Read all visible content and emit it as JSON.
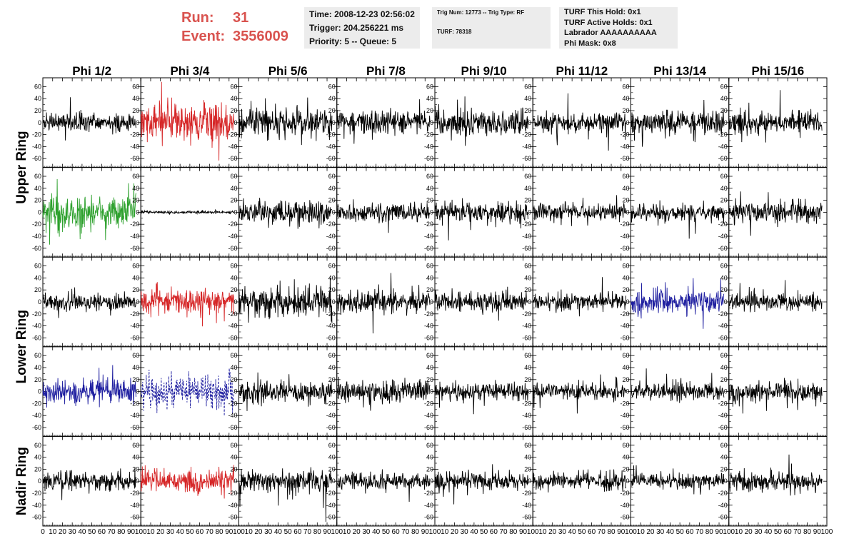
{
  "header": {
    "run_label": "Run:",
    "run_value": "31",
    "event_label": "Event:",
    "event_value": "3556009"
  },
  "info_time": {
    "time": "Time: 2008-12-23 02:56:02",
    "trigger": "Trigger: 204.256221 ms",
    "priority": "Priority: 5 -- Queue: 5"
  },
  "info_trig": {
    "trig_line": "Trig Num: 12773 -- Trig Type: RF",
    "turf_line": "TURF: 78318"
  },
  "info_turf": {
    "this_hold": "TURF This Hold: 0x1",
    "active_holds": "TURF Active Holds: 0x1",
    "labrador": "Labrador AAAAAAAAAA",
    "phi_mask": "Phi Mask: 0x8"
  },
  "colors": {
    "header_accent": "#d9534f",
    "trace_default": "#000000",
    "trace_red": "#d62728",
    "trace_green": "#2ca02c",
    "trace_blue": "#1f1fa0",
    "dashed_blue": "#1f1fa0",
    "info_box_bg": "#ececec"
  },
  "chart_data": {
    "type": "line",
    "columns": [
      "Phi 1/2",
      "Phi 3/4",
      "Phi 5/6",
      "Phi 7/8",
      "Phi 9/10",
      "Phi 11/12",
      "Phi 13/14",
      "Phi 15/16"
    ],
    "ring_labels": [
      {
        "label": "Upper Ring",
        "rows": [
          0,
          1
        ]
      },
      {
        "label": "Lower Ring",
        "rows": [
          2,
          3
        ]
      },
      {
        "label": "Nadir Ring",
        "rows": [
          4,
          4
        ]
      }
    ],
    "ylim": [
      -70,
      70
    ],
    "y_ticks": [
      -60,
      -40,
      -20,
      0,
      20,
      40,
      60
    ],
    "xlim": [
      0,
      100
    ],
    "x_ticks": [
      0,
      10,
      20,
      30,
      40,
      50,
      60,
      70,
      80,
      90,
      100
    ],
    "x_tick_labels": [
      "0",
      "10",
      "20",
      "30",
      "40",
      "50",
      "60",
      "70",
      "80",
      "90",
      "100"
    ],
    "x_data_range": [
      0,
      95
    ],
    "grid": false,
    "panels": [
      [
        {
          "color": "trace_default",
          "amplitude": 12,
          "seed": 11
        },
        {
          "color": "trace_red",
          "amplitude": 28,
          "seed": 12
        },
        {
          "color": "trace_default",
          "amplitude": 20,
          "seed": 13
        },
        {
          "color": "trace_default",
          "amplitude": 16,
          "seed": 14
        },
        {
          "color": "trace_default",
          "amplitude": 16,
          "seed": 15
        },
        {
          "color": "trace_default",
          "amplitude": 13,
          "seed": 16
        },
        {
          "color": "trace_default",
          "amplitude": 15,
          "seed": 17
        },
        {
          "color": "trace_default",
          "amplitude": 15,
          "seed": 18
        }
      ],
      [
        {
          "color": "trace_green",
          "amplitude": 24,
          "seed": 21
        },
        {
          "color": "trace_default",
          "amplitude": 2,
          "seed": 22
        },
        {
          "color": "trace_default",
          "amplitude": 16,
          "seed": 23
        },
        {
          "color": "trace_default",
          "amplitude": 13,
          "seed": 24
        },
        {
          "color": "trace_default",
          "amplitude": 14,
          "seed": 25
        },
        {
          "color": "trace_default",
          "amplitude": 11,
          "seed": 26
        },
        {
          "color": "trace_default",
          "amplitude": 11,
          "seed": 27
        },
        {
          "color": "trace_default",
          "amplitude": 14,
          "seed": 28
        }
      ],
      [
        {
          "color": "trace_default",
          "amplitude": 11,
          "seed": 31
        },
        {
          "color": "trace_red",
          "amplitude": 16,
          "seed": 32
        },
        {
          "color": "trace_default",
          "amplitude": 20,
          "seed": 33
        },
        {
          "color": "trace_default",
          "amplitude": 14,
          "seed": 34
        },
        {
          "color": "trace_default",
          "amplitude": 13,
          "seed": 35
        },
        {
          "color": "trace_default",
          "amplitude": 12,
          "seed": 36
        },
        {
          "color": "trace_blue",
          "amplitude": 16,
          "seed": 37
        },
        {
          "color": "trace_default",
          "amplitude": 12,
          "seed": 38
        }
      ],
      [
        {
          "color": "trace_blue",
          "amplitude": 18,
          "seed": 41
        },
        {
          "color": "dashed_blue",
          "amplitude": 22,
          "seed": 42,
          "dashed": true
        },
        {
          "color": "trace_default",
          "amplitude": 14,
          "seed": 43
        },
        {
          "color": "trace_default",
          "amplitude": 14,
          "seed": 44
        },
        {
          "color": "trace_default",
          "amplitude": 13,
          "seed": 45
        },
        {
          "color": "trace_default",
          "amplitude": 11,
          "seed": 46
        },
        {
          "color": "trace_default",
          "amplitude": 12,
          "seed": 47
        },
        {
          "color": "trace_default",
          "amplitude": 14,
          "seed": 48
        }
      ],
      [
        {
          "color": "trace_default",
          "amplitude": 12,
          "seed": 51
        },
        {
          "color": "trace_red",
          "amplitude": 17,
          "seed": 52
        },
        {
          "color": "trace_default",
          "amplitude": 16,
          "seed": 53
        },
        {
          "color": "trace_default",
          "amplitude": 12,
          "seed": 54
        },
        {
          "color": "trace_default",
          "amplitude": 12,
          "seed": 55
        },
        {
          "color": "trace_default",
          "amplitude": 12,
          "seed": 56
        },
        {
          "color": "trace_default",
          "amplitude": 11,
          "seed": 57
        },
        {
          "color": "trace_default",
          "amplitude": 13,
          "seed": 58
        }
      ]
    ]
  }
}
